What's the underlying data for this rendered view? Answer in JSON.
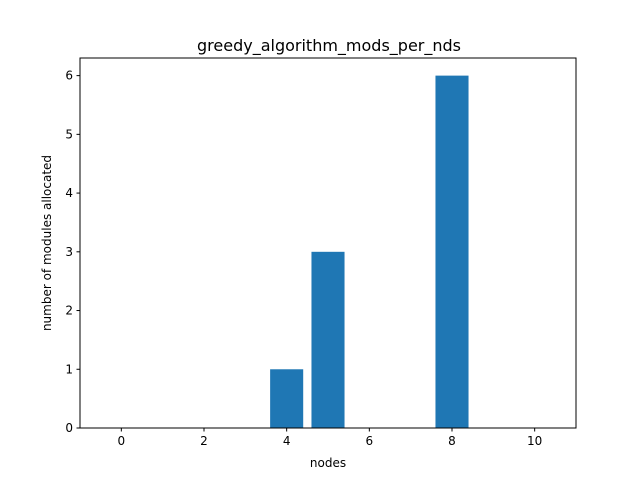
{
  "chart_data": {
    "type": "bar",
    "title": "greedy_algorithm_mods_per_nds",
    "xlabel": "nodes",
    "ylabel": "number of modules allocated",
    "xlim": [
      -1,
      11
    ],
    "ylim": [
      0,
      6.3
    ],
    "xticks": [
      0,
      2,
      4,
      6,
      8,
      10
    ],
    "yticks": [
      0,
      1,
      2,
      3,
      4,
      5,
      6
    ],
    "x": [
      0,
      1,
      2,
      3,
      4,
      5,
      6,
      7,
      8,
      9,
      10
    ],
    "values": [
      0,
      0,
      0,
      0,
      1,
      3,
      0,
      0,
      6,
      0,
      0
    ],
    "bar_color": "#1f77b4",
    "grid": false,
    "legend": false
  }
}
